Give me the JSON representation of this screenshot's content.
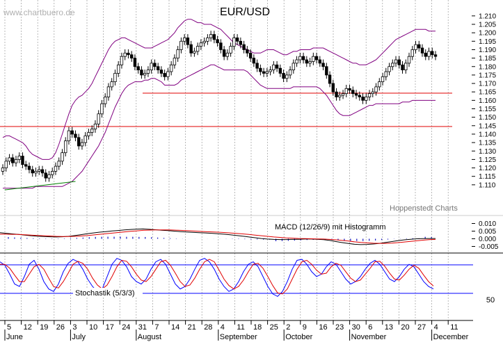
{
  "header": {
    "title": "EUR/USD",
    "watermark": "www.chartbuero.de",
    "source": "Hoppenstedt Charts"
  },
  "colors": {
    "grid": "#9a9a9a",
    "bollinger": "#800080",
    "support": "#e00000",
    "macd": "#000000",
    "signal": "#e00000",
    "histogram": "#1010c0",
    "stoch_k": "#0000ff",
    "stoch_d": "#e00000",
    "trend": "#008000"
  },
  "chart_data": [
    {
      "type": "candlestick",
      "title": "EUR/USD",
      "yticks": [
        "1.210",
        "1.205",
        "1.200",
        "1.195",
        "1.190",
        "1.185",
        "1.180",
        "1.175",
        "1.170",
        "1.165",
        "1.160",
        "1.155",
        "1.150",
        "1.145",
        "1.140",
        "1.135",
        "1.130",
        "1.125",
        "1.120",
        "1.115",
        "1.110"
      ],
      "ylim": [
        1.105,
        1.212
      ],
      "date_labels": [
        "5",
        "12",
        "19",
        "26",
        "3",
        "10",
        "17",
        "24",
        "31",
        "7",
        "14",
        "21",
        "28",
        "4",
        "11",
        "18",
        "25",
        "2",
        "9",
        "16",
        "23",
        "30",
        "6",
        "13",
        "20",
        "27",
        "4",
        "11"
      ],
      "month_labels": [
        {
          "label": "June",
          "at": 0
        },
        {
          "label": "July",
          "at": 4
        },
        {
          "label": "August",
          "at": 8
        },
        {
          "label": "September",
          "at": 13
        },
        {
          "label": "October",
          "at": 17
        },
        {
          "label": "November",
          "at": 21
        },
        {
          "label": "December",
          "at": 26
        }
      ],
      "support_levels": [
        1.17,
        1.152
      ],
      "trendline": [
        {
          "x": 0,
          "y": 1.107
        },
        {
          "x": 4.3,
          "y": 1.112
        }
      ],
      "closes": [
        1.12,
        1.124,
        1.126,
        1.123,
        1.125,
        1.127,
        1.122,
        1.121,
        1.119,
        1.117,
        1.118,
        1.119,
        1.117,
        1.114,
        1.116,
        1.118,
        1.121,
        1.124,
        1.129,
        1.136,
        1.142,
        1.14,
        1.138,
        1.133,
        1.135,
        1.139,
        1.141,
        1.143,
        1.146,
        1.152,
        1.158,
        1.162,
        1.168,
        1.171,
        1.176,
        1.181,
        1.186,
        1.188,
        1.187,
        1.185,
        1.18,
        1.178,
        1.175,
        1.176,
        1.178,
        1.182,
        1.18,
        1.178,
        1.176,
        1.174,
        1.177,
        1.181,
        1.185,
        1.19,
        1.195,
        1.197,
        1.193,
        1.188,
        1.189,
        1.192,
        1.194,
        1.195,
        1.197,
        1.199,
        1.196,
        1.194,
        1.19,
        1.186,
        1.188,
        1.192,
        1.197,
        1.195,
        1.193,
        1.19,
        1.188,
        1.185,
        1.182,
        1.179,
        1.177,
        1.176,
        1.177,
        1.178,
        1.181,
        1.179,
        1.176,
        1.173,
        1.175,
        1.178,
        1.182,
        1.184,
        1.186,
        1.184,
        1.182,
        1.183,
        1.186,
        1.184,
        1.182,
        1.18,
        1.175,
        1.17,
        1.165,
        1.162,
        1.163,
        1.164,
        1.167,
        1.166,
        1.164,
        1.163,
        1.162,
        1.16,
        1.162,
        1.164,
        1.165,
        1.168,
        1.171,
        1.174,
        1.177,
        1.18,
        1.182,
        1.184,
        1.181,
        1.178,
        1.182,
        1.186,
        1.19,
        1.193,
        1.191,
        1.188,
        1.186,
        1.189,
        1.187,
        1.186
      ],
      "bollinger_upper": [
        1.138,
        1.139,
        1.139,
        1.138,
        1.137,
        1.136,
        1.135,
        1.133,
        1.13,
        1.128,
        1.127,
        1.126,
        1.125,
        1.125,
        1.125,
        1.126,
        1.129,
        1.134,
        1.14,
        1.146,
        1.152,
        1.157,
        1.16,
        1.162,
        1.163,
        1.165,
        1.167,
        1.17,
        1.174,
        1.178,
        1.182,
        1.186,
        1.19,
        1.193,
        1.195,
        1.196,
        1.197,
        1.197,
        1.196,
        1.195,
        1.194,
        1.193,
        1.192,
        1.191,
        1.191,
        1.191,
        1.192,
        1.193,
        1.194,
        1.195,
        1.196,
        1.198,
        1.2,
        1.203,
        1.205,
        1.207,
        1.208,
        1.208,
        1.207,
        1.206,
        1.206,
        1.205,
        1.205,
        1.205,
        1.204,
        1.203,
        1.202,
        1.2,
        1.198,
        1.196,
        1.194,
        1.193,
        1.192,
        1.191,
        1.19,
        1.189,
        1.188,
        1.188,
        1.188,
        1.189,
        1.19,
        1.19,
        1.19,
        1.189,
        1.188,
        1.187,
        1.187,
        1.188,
        1.189,
        1.189,
        1.19,
        1.19,
        1.19,
        1.19,
        1.191,
        1.191,
        1.191,
        1.191,
        1.19,
        1.189,
        1.188,
        1.187,
        1.186,
        1.185,
        1.184,
        1.183,
        1.182,
        1.182,
        1.181,
        1.181,
        1.181,
        1.182,
        1.183,
        1.184,
        1.186,
        1.188,
        1.19,
        1.192,
        1.194,
        1.196,
        1.197,
        1.198,
        1.199,
        1.2,
        1.201,
        1.202,
        1.202,
        1.202,
        1.202,
        1.201,
        1.201,
        1.201
      ],
      "bollinger_lower": [
        1.108,
        1.108,
        1.108,
        1.108,
        1.108,
        1.108,
        1.108,
        1.108,
        1.108,
        1.108,
        1.109,
        1.109,
        1.109,
        1.109,
        1.109,
        1.109,
        1.109,
        1.109,
        1.109,
        1.11,
        1.111,
        1.112,
        1.114,
        1.116,
        1.118,
        1.121,
        1.124,
        1.127,
        1.13,
        1.133,
        1.137,
        1.141,
        1.146,
        1.151,
        1.156,
        1.16,
        1.164,
        1.167,
        1.169,
        1.17,
        1.171,
        1.171,
        1.171,
        1.172,
        1.172,
        1.173,
        1.173,
        1.172,
        1.171,
        1.169,
        1.169,
        1.169,
        1.169,
        1.17,
        1.172,
        1.173,
        1.174,
        1.175,
        1.176,
        1.177,
        1.178,
        1.179,
        1.18,
        1.181,
        1.181,
        1.18,
        1.179,
        1.178,
        1.178,
        1.178,
        1.178,
        1.178,
        1.178,
        1.178,
        1.177,
        1.175,
        1.173,
        1.171,
        1.169,
        1.168,
        1.167,
        1.167,
        1.167,
        1.167,
        1.167,
        1.167,
        1.167,
        1.167,
        1.168,
        1.168,
        1.168,
        1.168,
        1.168,
        1.168,
        1.168,
        1.168,
        1.167,
        1.165,
        1.163,
        1.16,
        1.157,
        1.154,
        1.152,
        1.151,
        1.151,
        1.151,
        1.152,
        1.153,
        1.154,
        1.155,
        1.156,
        1.157,
        1.157,
        1.158,
        1.158,
        1.158,
        1.158,
        1.158,
        1.158,
        1.158,
        1.158,
        1.159,
        1.159,
        1.159,
        1.16,
        1.16,
        1.16,
        1.16,
        1.16,
        1.16,
        1.16,
        1.16
      ]
    },
    {
      "type": "line",
      "title": "MACD (12/26/9) mit Histogramm",
      "yticks": [
        "0.010",
        "0.005",
        "0.000",
        "-0.005"
      ],
      "ylim": [
        -0.0075,
        0.0125
      ],
      "series": [
        {
          "name": "MACD",
          "values": [
            0.004,
            0.0036,
            0.0032,
            0.0028,
            0.0024,
            0.002,
            0.0017,
            0.0015,
            0.0013,
            0.0012,
            0.0013,
            0.0016,
            0.0021,
            0.0027,
            0.0033,
            0.0038,
            0.0043,
            0.0047,
            0.0051,
            0.0054,
            0.0058,
            0.0061,
            0.0063,
            0.0064,
            0.0062,
            0.0059,
            0.0056,
            0.0053,
            0.005,
            0.0047,
            0.0044,
            0.0042,
            0.004,
            0.0038,
            0.0036,
            0.0033,
            0.003,
            0.0026,
            0.0022,
            0.0017,
            0.0012,
            0.0007,
            0.0002,
            -0.0002,
            -0.0004,
            -0.0005,
            -0.0005,
            -0.0004,
            -0.0003,
            -0.0002,
            -0.0002,
            -0.0003,
            -0.0006,
            -0.0011,
            -0.0018,
            -0.0025,
            -0.0031,
            -0.0036,
            -0.0038,
            -0.0037,
            -0.0034,
            -0.003,
            -0.0024,
            -0.0018,
            -0.0012,
            -0.0007,
            -0.0003,
            0.0,
            0.0001,
            0.0002,
            0.0002
          ]
        },
        {
          "name": "Signal",
          "values": [
            0.003,
            0.003,
            0.0029,
            0.0028,
            0.0026,
            0.0024,
            0.0022,
            0.002,
            0.0018,
            0.0016,
            0.0015,
            0.0015,
            0.0016,
            0.0018,
            0.0021,
            0.0025,
            0.0029,
            0.0033,
            0.0037,
            0.0041,
            0.0045,
            0.0049,
            0.0052,
            0.0055,
            0.0057,
            0.0058,
            0.0058,
            0.0058,
            0.0057,
            0.0055,
            0.0053,
            0.0051,
            0.0049,
            0.0047,
            0.0045,
            0.0043,
            0.0041,
            0.0038,
            0.0035,
            0.0032,
            0.0028,
            0.0024,
            0.002,
            0.0016,
            0.0012,
            0.0009,
            0.0006,
            0.0004,
            0.0002,
            0.0001,
            0.0,
            -0.0001,
            -0.0002,
            -0.0004,
            -0.0007,
            -0.0011,
            -0.0015,
            -0.002,
            -0.0024,
            -0.0027,
            -0.0029,
            -0.003,
            -0.003,
            -0.0028,
            -0.0025,
            -0.0021,
            -0.0017,
            -0.0013,
            -0.0009,
            -0.0006,
            -0.0004
          ]
        }
      ]
    },
    {
      "type": "line",
      "title": "Stochastik (5/3/3)",
      "yticks": [
        "50"
      ],
      "ylim": [
        0,
        100
      ],
      "levels": [
        80,
        20
      ],
      "series": [
        {
          "name": "%K",
          "values": [
            85,
            78,
            60,
            40,
            35,
            55,
            80,
            88,
            70,
            45,
            30,
            25,
            40,
            65,
            82,
            90,
            85,
            70,
            50,
            35,
            25,
            30,
            55,
            80,
            92,
            88,
            75,
            55,
            45,
            40,
            50,
            70,
            85,
            90,
            80,
            60,
            40,
            30,
            35,
            50,
            70,
            88,
            92,
            85,
            70,
            50,
            35,
            25,
            30,
            45,
            65,
            80,
            85,
            75,
            55,
            35,
            20,
            15,
            25,
            45,
            70,
            88,
            90,
            80,
            65,
            55,
            60,
            75,
            85,
            80,
            65,
            50,
            40,
            45,
            55,
            70,
            82,
            88,
            80,
            65,
            50,
            45,
            55,
            70,
            80,
            75,
            60,
            45,
            35,
            30
          ]
        },
        {
          "name": "%D",
          "values": [
            80,
            80,
            72,
            58,
            45,
            45,
            60,
            75,
            80,
            70,
            52,
            35,
            32,
            45,
            62,
            80,
            86,
            82,
            70,
            52,
            38,
            30,
            38,
            55,
            75,
            88,
            86,
            75,
            60,
            48,
            45,
            55,
            70,
            85,
            88,
            78,
            62,
            45,
            35,
            38,
            52,
            70,
            85,
            90,
            85,
            68,
            50,
            37,
            30,
            35,
            48,
            65,
            80,
            82,
            72,
            55,
            37,
            22,
            20,
            30,
            50,
            70,
            85,
            88,
            80,
            68,
            60,
            62,
            75,
            82,
            78,
            65,
            52,
            45,
            48,
            60,
            72,
            85,
            86,
            76,
            62,
            50,
            48,
            58,
            70,
            78,
            72,
            58,
            45,
            36
          ]
        }
      ]
    }
  ]
}
